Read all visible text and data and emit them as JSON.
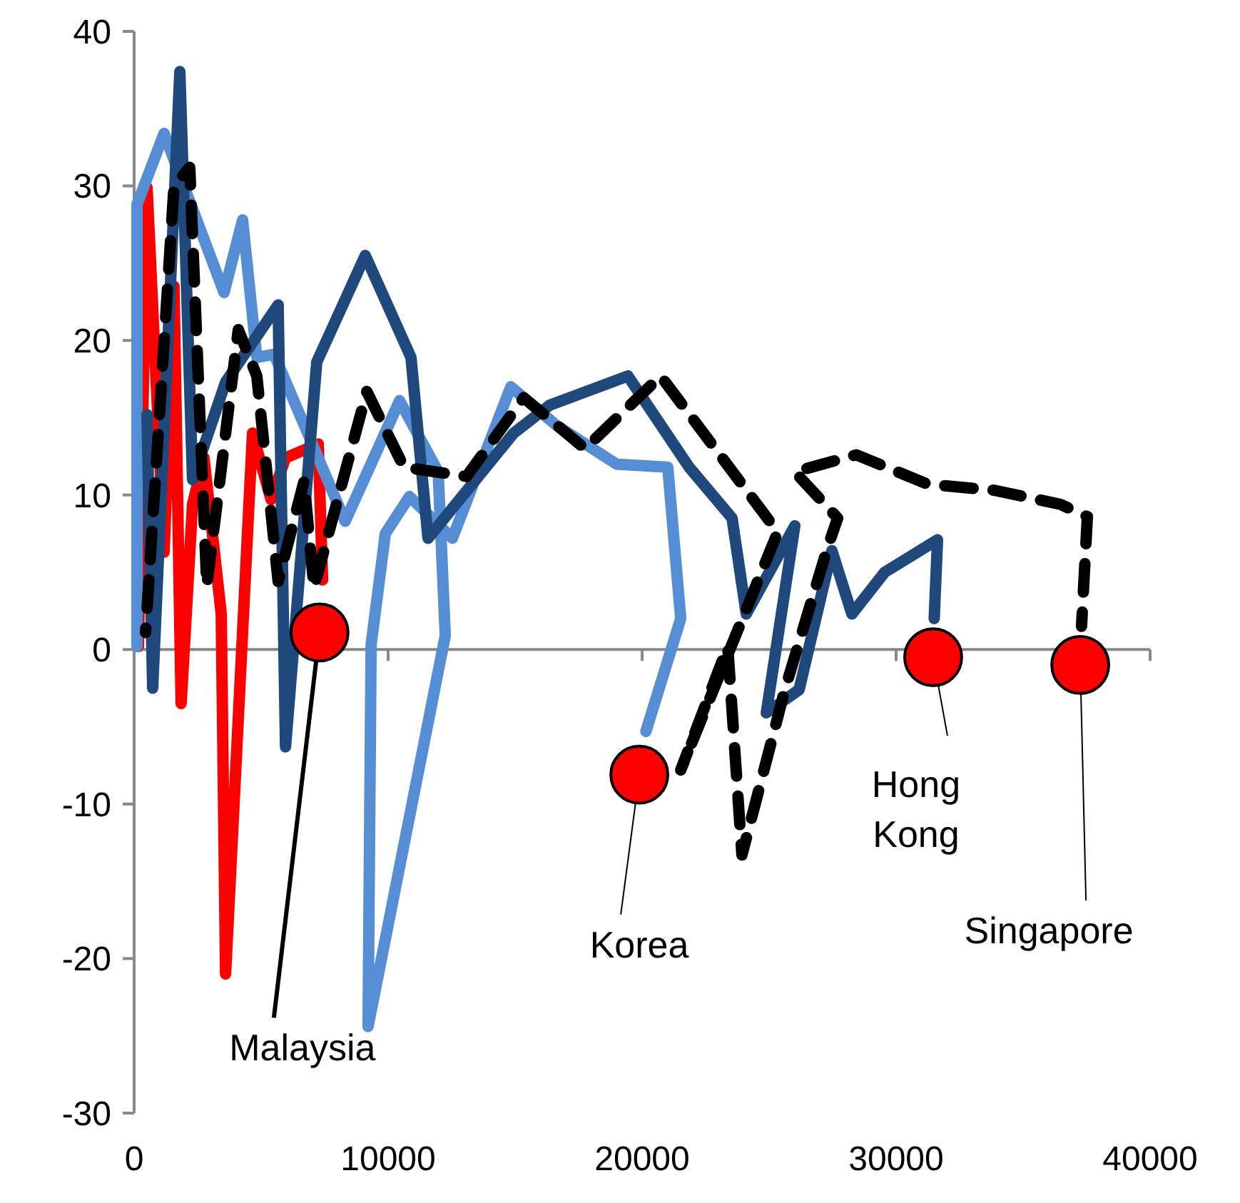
{
  "chart_data": {
    "type": "line",
    "xlim": [
      0,
      40000
    ],
    "ylim": [
      -30,
      40
    ],
    "xticks": [
      0,
      10000,
      20000,
      30000,
      40000
    ],
    "yticks": [
      -30,
      -20,
      -10,
      0,
      10,
      20,
      30,
      40
    ],
    "marker": "none",
    "series": [
      {
        "color": "#ff0000",
        "line_style": "solid",
        "x": [
          170,
          510,
          1180,
          1570,
          1850,
          2300,
          2750,
          3430,
          3600,
          4660,
          5390,
          5960,
          7250,
          7420
        ],
        "values": [
          0.2,
          29.9,
          6.3,
          23.5,
          -3.5,
          9.4,
          12.4,
          2.3,
          -21,
          14,
          9.7,
          12.4,
          13.3,
          4.5
        ]
      },
      {
        "color": "#558ed5",
        "line_style": "solid",
        "x": [
          112,
          112,
          1180,
          3540,
          4270,
          4830,
          5510,
          8310,
          10450,
          11970,
          12250,
          9210,
          9330,
          9890,
          10840,
          12530,
          14830,
          16630,
          18990,
          21010,
          21520,
          20150
        ],
        "values": [
          0.2,
          28.8,
          33.4,
          23.1,
          27.8,
          18.9,
          19.1,
          8.3,
          16.1,
          11.5,
          0.9,
          -24.4,
          0.3,
          7.5,
          9.9,
          7.2,
          17,
          14.5,
          12,
          11.8,
          2,
          -5.3
        ]
      },
      {
        "color": "#1f497d",
        "line_style": "solid",
        "x": [
          506,
          730,
          1800,
          2300,
          3600,
          5670,
          5960,
          7190,
          9100,
          10900,
          11570,
          14940,
          16350,
          19440,
          21850,
          23540,
          24100,
          26010,
          24890,
          26180,
          27470,
          28260,
          29550,
          31630,
          31500
        ],
        "values": [
          15.2,
          -2.5,
          37.4,
          11,
          17.3,
          22.3,
          -6.3,
          18.6,
          25.5,
          18.9,
          7.2,
          14,
          15.8,
          17.7,
          11.8,
          8.5,
          2.3,
          8,
          -4.1,
          -2.6,
          6.4,
          2.3,
          5,
          7.1,
          2
        ]
      },
      {
        "color": "#000000",
        "line_style": "dashed",
        "x": [
          450,
          1570,
          2190,
          2860,
          3260,
          4100,
          4830,
          5670,
          6690,
          7080,
          9160,
          10620,
          13090,
          15340,
          17750,
          20730,
          25340,
          21520,
          23370,
          23930,
          25620,
          27300,
          27700,
          26010,
          28430,
          31240,
          33880,
          36460,
          37530,
          37300
        ],
        "values": [
          1.1,
          30,
          31.2,
          4.1,
          9.4,
          20.7,
          17.7,
          4.4,
          10.9,
          4,
          16.7,
          11.8,
          11.2,
          16.3,
          13,
          17.7,
          7.6,
          -7.8,
          0.2,
          -13.3,
          -2.6,
          6.6,
          8.5,
          11.5,
          12.6,
          10.7,
          10.3,
          9.4,
          8.6,
          1.5
        ]
      },
      {
        "type": "scatter",
        "marker": "circle",
        "color": "#ff0000",
        "x": [
          7300,
          19890,
          31460,
          37250
        ],
        "values": [
          1.1,
          -8.1,
          -0.5,
          -1
        ]
      }
    ],
    "annotations": [
      {
        "text": "Malaysia",
        "x": 7300,
        "y": 1.1
      },
      {
        "text": "Korea",
        "x": 19890,
        "y": -8.1
      },
      {
        "text": "Hong Kong",
        "x": 31460,
        "y": -0.5
      },
      {
        "text": "Singapore",
        "x": 37250,
        "y": -1
      }
    ]
  }
}
